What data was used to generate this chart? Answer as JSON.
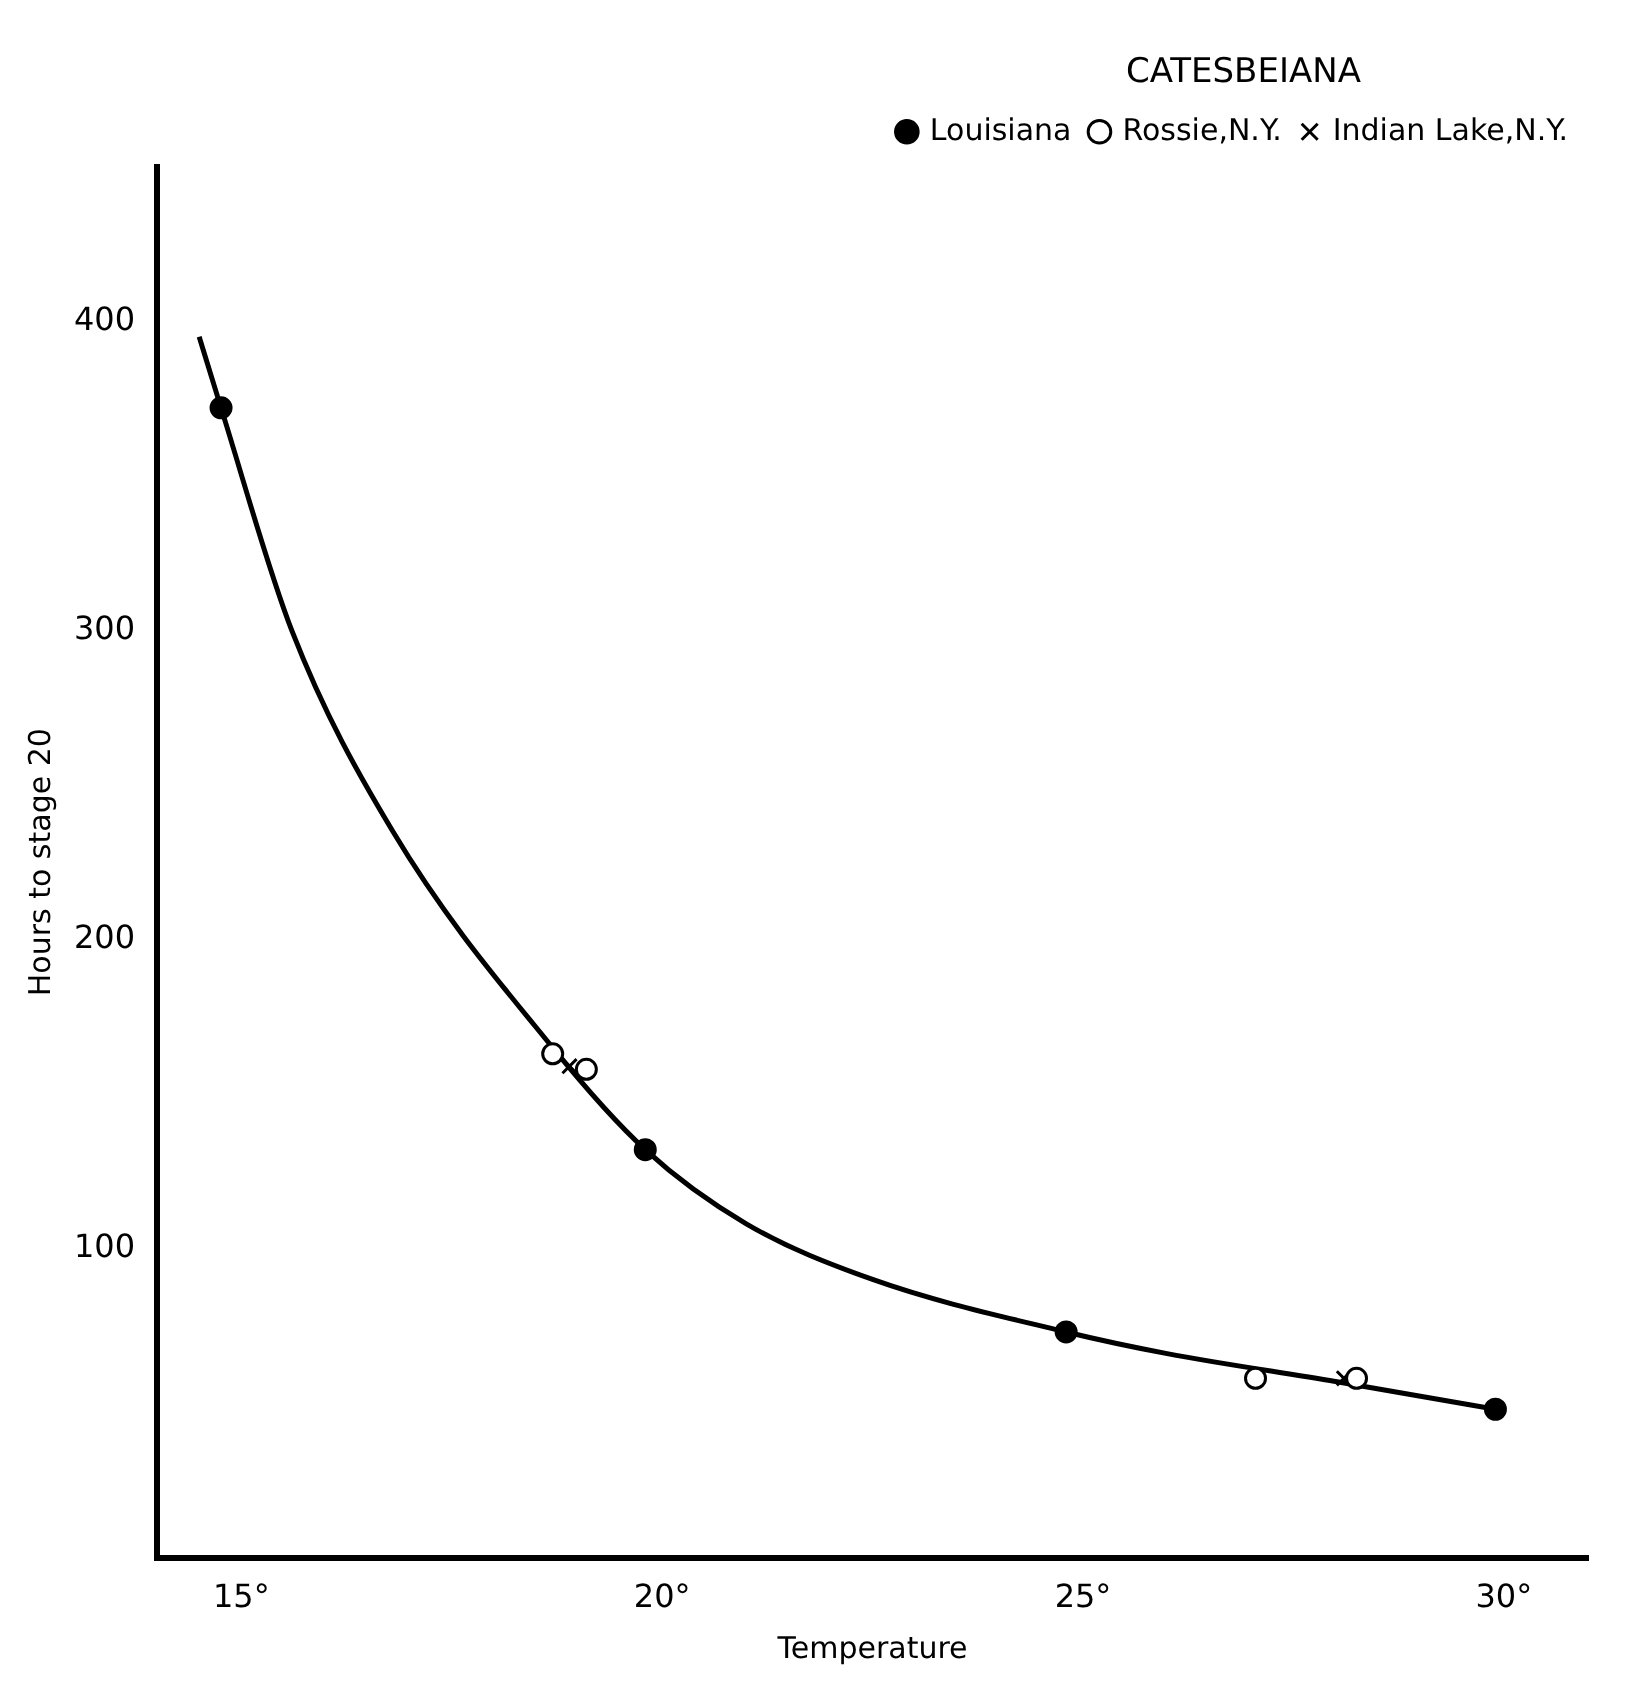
{
  "chart_data": {
    "type": "scatter",
    "xlabel": "Temperature",
    "ylabel": "Hours to stage 20",
    "legend_title": "CATESBEIANA",
    "legend": "top right",
    "grid": false,
    "xlim": [
      14,
      31
    ],
    "xticks": [
      {
        "value": 15,
        "label": "15°"
      },
      {
        "value": 20,
        "label": "20°"
      },
      {
        "value": 25,
        "label": "25°"
      },
      {
        "value": 30,
        "label": "30°"
      }
    ],
    "ylim": [
      0,
      450
    ],
    "yticks": [
      100,
      200,
      300,
      400
    ],
    "series": [
      {
        "name": "Louisiana",
        "color": "#000000",
        "marker": "circle",
        "x": [
          14.76,
          19.8,
          24.8,
          29.9
        ],
        "values": [
          372,
          132,
          73,
          48
        ]
      },
      {
        "name": "Rossie,N.Y.",
        "color": "#000000",
        "marker": "open circle",
        "x": [
          18.7,
          19.1,
          27.05,
          28.25
        ],
        "values": [
          163,
          158,
          58,
          58
        ]
      },
      {
        "name": "Indian Lake,N.Y.",
        "color": "#000000",
        "marker": "cross",
        "x": [
          18.9,
          28.1
        ],
        "values": [
          159,
          58
        ]
      },
      {
        "type": "line",
        "color": "#000000",
        "marker": "none",
        "line_style": "solid",
        "x": [
          14.5,
          14.76,
          15.6,
          16.8,
          18.7,
          19.8,
          21,
          22.5,
          24.8,
          26,
          28,
          29.9
        ],
        "values": [
          395,
          372,
          300,
          235,
          165,
          132,
          108,
          90,
          73,
          66,
          57,
          48
        ]
      }
    ]
  }
}
